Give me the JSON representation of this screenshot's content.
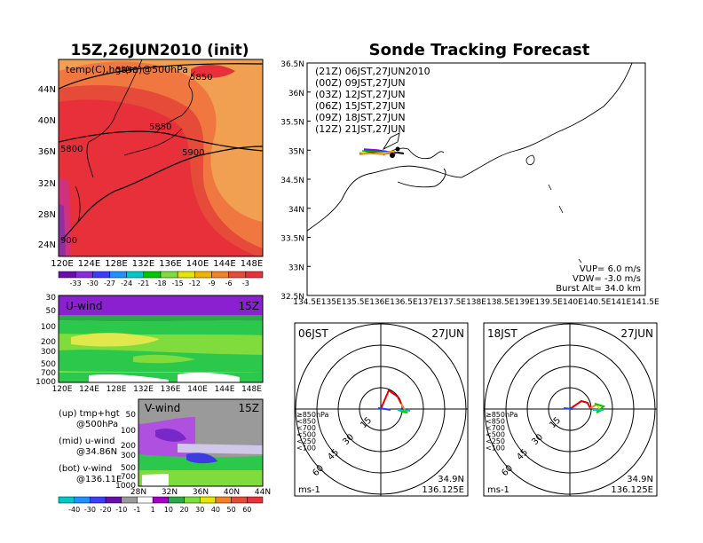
{
  "left_title": "15Z,26JUN2010 (init)",
  "right_title": "Sonde Tracking Forecast",
  "map": {
    "label": "temp(C),hgt(m)@500hPa",
    "lat_ticks": [
      "44N",
      "40N",
      "36N",
      "32N",
      "28N",
      "24N"
    ],
    "lon_ticks": [
      "120E",
      "124E",
      "128E",
      "132E",
      "136E",
      "140E",
      "144E",
      "148E"
    ],
    "contour_labels": [
      "5850",
      "5850",
      "5850",
      "5800",
      "5900",
      "900"
    ]
  },
  "temp_colorbar": [
    "-33",
    "-30",
    "-27",
    "-24",
    "-21",
    "-18",
    "-15",
    "-12",
    "-9",
    "-6",
    "-3"
  ],
  "uwind": {
    "label": "U-wind",
    "time": "15Z",
    "levels": [
      "30",
      "50",
      "100",
      "200",
      "300",
      "500",
      "700",
      "1000"
    ],
    "lon_ticks": [
      "120E",
      "124E",
      "128E",
      "132E",
      "136E",
      "140E",
      "144E",
      "148E"
    ]
  },
  "vwind": {
    "label": "V-wind",
    "time": "15Z",
    "levels": [
      "50",
      "100",
      "200",
      "300",
      "500",
      "700",
      "1000"
    ],
    "lat_ticks": [
      "28N",
      "32N",
      "36N",
      "40N",
      "44N"
    ]
  },
  "wind_colorbar": [
    "-40",
    "-30",
    "-20",
    "-10",
    "-1",
    "1",
    "10",
    "20",
    "30",
    "40",
    "50",
    "60"
  ],
  "legend_notes": [
    {
      "head": "(up) tmp+hgt",
      "sub": "@500hPa"
    },
    {
      "head": "(mid) u-wind",
      "sub": "@34.86N"
    },
    {
      "head": "(bot) v-wind",
      "sub": "@136.11E"
    }
  ],
  "track": {
    "lat_ticks": [
      "36.5N",
      "36N",
      "35.5N",
      "35N",
      "34.5N",
      "34N",
      "33.5N",
      "33N",
      "32.5N"
    ],
    "lon_ticks": [
      "134.5E",
      "135E",
      "135.5E",
      "136E",
      "136.5E",
      "137E",
      "137.5E",
      "138E",
      "138.5E",
      "139E",
      "139.5E",
      "140E",
      "140.5E",
      "141E",
      "141.5E"
    ],
    "legend": [
      {
        "text": "(21Z)  06JST,27JUN2010",
        "color": "#000000"
      },
      {
        "text": "(00Z)  09JST,27JUN",
        "color": "#a000c8"
      },
      {
        "text": "(03Z)  12JST,27JUN",
        "color": "#1e3cff"
      },
      {
        "text": "(06Z)  15JST,27JUN",
        "color": "#00b400"
      },
      {
        "text": "(09Z)  18JST,27JUN",
        "color": "#f0b400"
      },
      {
        "text": "(12Z)  21JST,27JUN",
        "color": "#f08228"
      }
    ],
    "params": [
      "VUP=  6.0  m/s",
      "VDW= -3.0  m/s",
      "Burst Alt=  34.0  km"
    ]
  },
  "hodo_left": {
    "time": "06JST",
    "date": "27JUN",
    "unit": "ms-1",
    "pos1": "34.9N",
    "pos2": "136.125E",
    "rings": [
      "15",
      "30",
      "45",
      "60"
    ]
  },
  "hodo_right": {
    "time": "18JST",
    "date": "27JUN",
    "unit": "ms-1",
    "pos1": "34.9N",
    "pos2": "136.125E",
    "rings": [
      "15",
      "30",
      "45",
      "60"
    ]
  },
  "hodo_legend": [
    {
      "text": "≥850hPa",
      "color": "#e60000"
    },
    {
      "text": "<850",
      "color": "#f08228"
    },
    {
      "text": "<700",
      "color": "#f0dc00"
    },
    {
      "text": "<500",
      "color": "#00c800"
    },
    {
      "text": "<250",
      "color": "#00c8c8"
    },
    {
      "text": "<100",
      "color": "#1e3cff"
    }
  ]
}
